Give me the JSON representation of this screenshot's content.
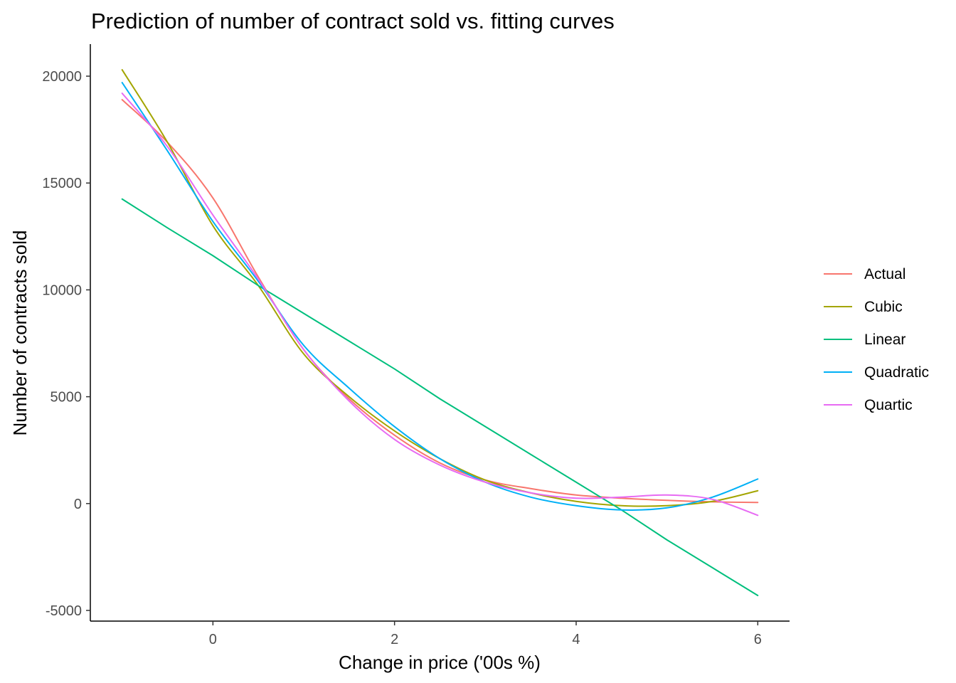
{
  "chart_data": {
    "type": "line",
    "title": "Prediction of number of contract sold vs. fitting curves",
    "xlabel": "Change in price ('00s %)",
    "ylabel": "Number of contracts sold",
    "xlim": [
      -1.35,
      6.35
    ],
    "ylim": [
      -5500,
      21500
    ],
    "x_ticks": [
      0,
      2,
      4,
      6
    ],
    "y_ticks": [
      -5000,
      0,
      5000,
      10000,
      15000,
      20000
    ],
    "grid": false,
    "legend_position": "right",
    "x": [
      -1,
      -0.5,
      0,
      0.5,
      1,
      1.5,
      2,
      2.5,
      3,
      3.5,
      4,
      4.5,
      5,
      5.5,
      6
    ],
    "series": [
      {
        "name": "Actual",
        "color": "#F8766D",
        "values": [
          18900,
          16900,
          14300,
          10600,
          7200,
          4900,
          3200,
          1900,
          1100,
          700,
          400,
          250,
          150,
          80,
          50
        ]
      },
      {
        "name": "Cubic",
        "color": "#A3A500",
        "values": [
          20300,
          16900,
          13000,
          10200,
          7000,
          5000,
          3400,
          2100,
          1100,
          500,
          100,
          -100,
          -100,
          100,
          600
        ]
      },
      {
        "name": "Linear",
        "color": "#00BF7D",
        "values": [
          14250,
          12900,
          11600,
          10200,
          8900,
          7600,
          6300,
          4900,
          3600,
          2300,
          1000,
          -300,
          -1700,
          -3000,
          -4300
        ]
      },
      {
        "name": "Quadratic",
        "color": "#00B0F6",
        "values": [
          19700,
          16500,
          13200,
          10400,
          7400,
          5400,
          3600,
          2100,
          1000,
          300,
          -100,
          -300,
          -200,
          300,
          1150
        ]
      },
      {
        "name": "Quartic",
        "color": "#E76BF3",
        "values": [
          19200,
          16700,
          13500,
          10500,
          7200,
          4800,
          3000,
          1800,
          1000,
          500,
          250,
          300,
          400,
          200,
          -550
        ]
      }
    ]
  }
}
